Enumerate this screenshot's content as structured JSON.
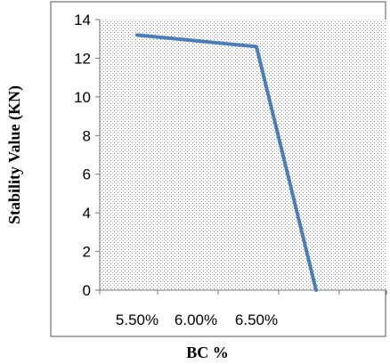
{
  "chart_data": {
    "type": "line",
    "title": "",
    "xlabel": "BC %",
    "ylabel": "Stability Value (KN)",
    "x_tick_labels": [
      "5.50%",
      "6.00%",
      "6.50%"
    ],
    "y_ticks": [
      0,
      2,
      4,
      6,
      8,
      10,
      12,
      14
    ],
    "ylim": [
      0,
      14
    ],
    "grid": false,
    "background": "dotted",
    "series": [
      {
        "name": "",
        "color": "#4a7ebb",
        "points": [
          {
            "x": 5.5,
            "y": 13.2
          },
          {
            "x": 6.0,
            "y": 12.9
          },
          {
            "x": 6.5,
            "y": 12.6
          },
          {
            "x": 7.0,
            "y": 0
          }
        ]
      }
    ]
  }
}
